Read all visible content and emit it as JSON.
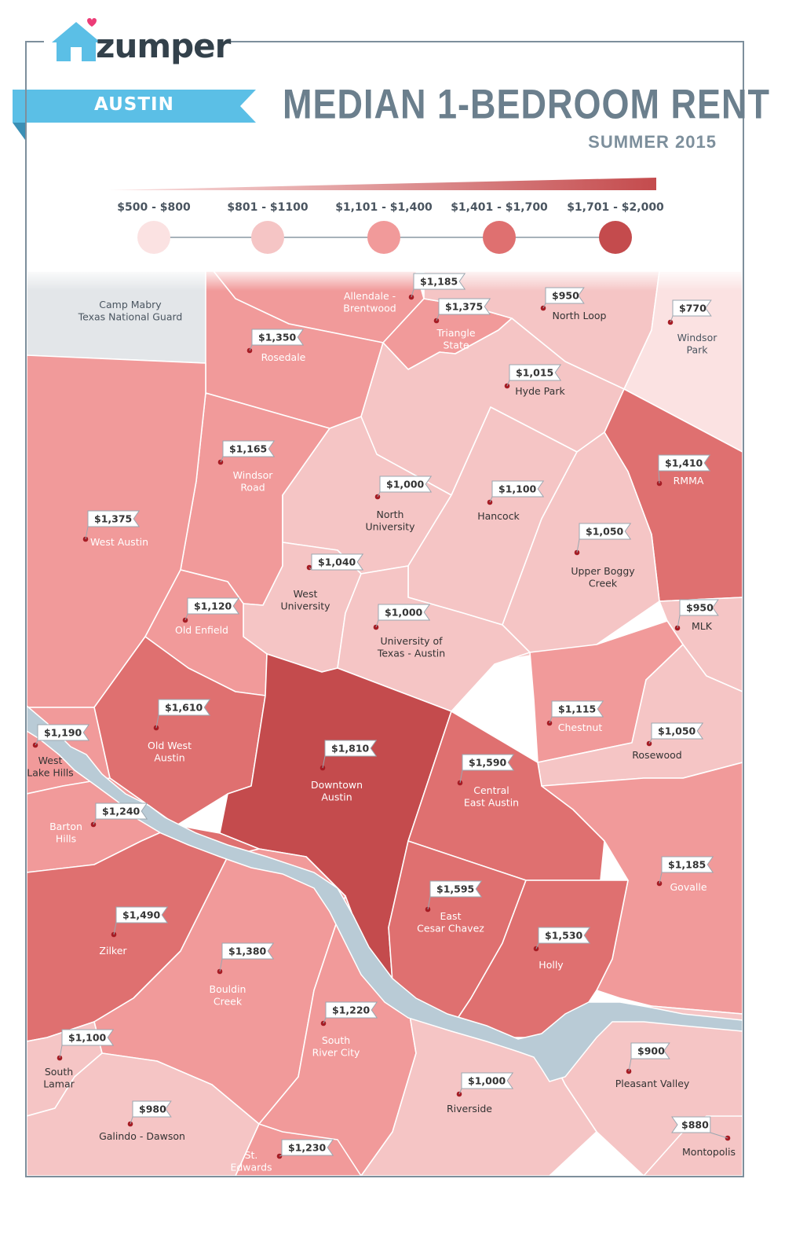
{
  "brand": {
    "name": "zumper"
  },
  "header": {
    "city": "AUSTIN",
    "title": "MEDIAN 1-BEDROOM RENT",
    "subtitle": "SUMMER 2015"
  },
  "legend": {
    "buckets": [
      {
        "label": "$500 - $800",
        "color": "#fbe2e2"
      },
      {
        "label": "$801 - $1100",
        "color": "#f5c5c5"
      },
      {
        "label": "$1,101 - $1,400",
        "color": "#f19a9a"
      },
      {
        "label": "$1,401 - $1,700",
        "color": "#df7070"
      },
      {
        "label": "$1,701 - $2,000",
        "color": "#c44b4d"
      }
    ]
  },
  "colors": {
    "frame": "#7d8f9c",
    "river": "#b9cbd6",
    "military": "#e3e6e9",
    "banner": "#5bbfe6",
    "pin": "#a51c24"
  },
  "neighborhoods": [
    {
      "name": "Camp Mabry\nTexas National Guard",
      "price": ""
    },
    {
      "name": "Allendale -\nBrentwood",
      "price": "$1,185"
    },
    {
      "name": "Triangle\nState",
      "price": "$1,375"
    },
    {
      "name": "North Loop",
      "price": "$950"
    },
    {
      "name": "Windsor\nPark",
      "price": "$770"
    },
    {
      "name": "Rosedale",
      "price": "$1,350"
    },
    {
      "name": "Hyde Park",
      "price": "$1,015"
    },
    {
      "name": "Windsor\nRoad",
      "price": "$1,165"
    },
    {
      "name": "RMMA",
      "price": "$1,410"
    },
    {
      "name": "North\nUniversity",
      "price": "$1,000"
    },
    {
      "name": "Hancock",
      "price": "$1,100"
    },
    {
      "name": "West Austin",
      "price": "$1,375"
    },
    {
      "name": "Upper Boggy\nCreek",
      "price": "$1,050"
    },
    {
      "name": "West\nUniversity",
      "price": "$1,040"
    },
    {
      "name": "Old Enfield",
      "price": "$1,120"
    },
    {
      "name": "MLK",
      "price": "$950"
    },
    {
      "name": "University of\nTexas - Austin",
      "price": "$1,000"
    },
    {
      "name": "Old West\nAustin",
      "price": "$1,610"
    },
    {
      "name": "Chestnut",
      "price": "$1,115"
    },
    {
      "name": "West\nLake Hills",
      "price": "$1,190"
    },
    {
      "name": "Downtown\nAustin",
      "price": "$1,810"
    },
    {
      "name": "Rosewood",
      "price": "$1,050"
    },
    {
      "name": "Central\nEast Austin",
      "price": "$1,590"
    },
    {
      "name": "Barton\nHills",
      "price": "$1,240"
    },
    {
      "name": "Govalle",
      "price": "$1,185"
    },
    {
      "name": "East\nCesar Chavez",
      "price": "$1,595"
    },
    {
      "name": "Zilker",
      "price": "$1,490"
    },
    {
      "name": "Holly",
      "price": "$1,530"
    },
    {
      "name": "Bouldin\nCreek",
      "price": "$1,380"
    },
    {
      "name": "South\nRiver City",
      "price": "$1,220"
    },
    {
      "name": "South\nLamar",
      "price": "$1,100"
    },
    {
      "name": "Pleasant Valley",
      "price": "$900"
    },
    {
      "name": "Riverside",
      "price": "$1,000"
    },
    {
      "name": "Galindo - Dawson",
      "price": "$980"
    },
    {
      "name": "Montopolis",
      "price": "$880"
    },
    {
      "name": "St.\nEdwards",
      "price": "$1,230"
    }
  ]
}
